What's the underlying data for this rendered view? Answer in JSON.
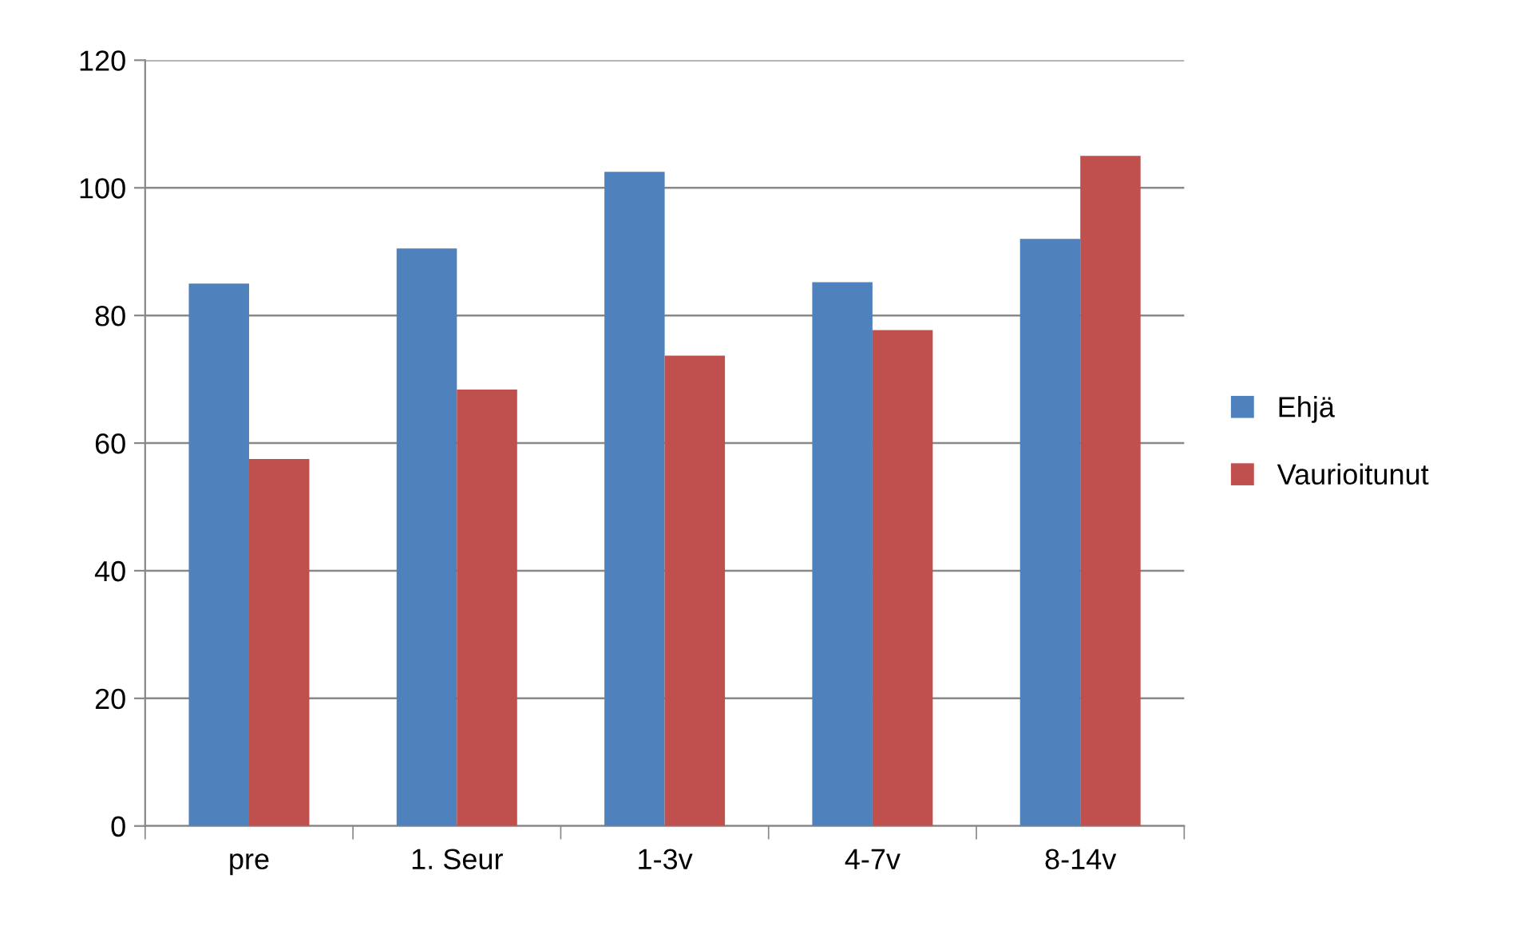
{
  "chart_data": {
    "type": "bar",
    "categories": [
      "pre",
      "1. Seur",
      "1-3v",
      "4-7v",
      "8-14v"
    ],
    "series": [
      {
        "name": "Ehjä",
        "color": "#4f81bd",
        "values": [
          85,
          90.5,
          102.5,
          85.2,
          92
        ]
      },
      {
        "name": "Vaurioitunut",
        "color": "#c0504d",
        "values": [
          57.5,
          68.4,
          73.7,
          77.7,
          105
        ]
      }
    ],
    "ylim": [
      0,
      120
    ],
    "yticks": [
      0,
      20,
      40,
      60,
      80,
      100,
      120
    ],
    "grid": "y",
    "legend": "right"
  }
}
